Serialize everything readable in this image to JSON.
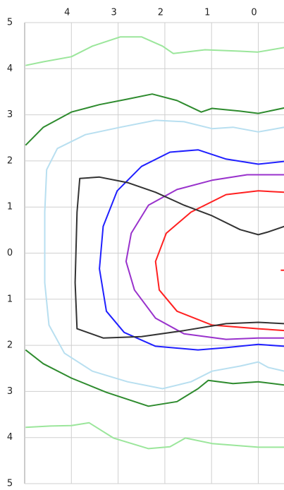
{
  "chart_data": {
    "type": "line",
    "xlim": [
      5,
      -0.55
    ],
    "xticks": [
      4,
      3,
      2,
      1,
      0
    ],
    "ylim": [
      -5,
      5
    ],
    "yticks": [
      5,
      4,
      3,
      2,
      1,
      0,
      {
        "value": -1,
        "label": "1"
      },
      {
        "value": -2,
        "label": "2"
      },
      {
        "value": -3,
        "label": "3"
      },
      {
        "value": -4,
        "label": "4"
      },
      {
        "value": -5,
        "label": "5"
      }
    ],
    "grid": true,
    "series": [
      {
        "color": "#9be69b",
        "x": [
          4.98,
          4.6,
          4.0,
          3.55,
          2.95,
          2.5,
          2.05,
          1.82,
          1.14,
          0.39,
          0.02,
          -0.56
        ],
        "values": [
          4.07,
          4.15,
          4.26,
          4.49,
          4.69,
          4.69,
          4.49,
          4.33,
          4.41,
          4.38,
          4.36,
          4.46
        ]
      },
      {
        "color": "#2e8b2e",
        "x": [
          4.98,
          4.6,
          4.0,
          3.4,
          2.8,
          2.27,
          1.74,
          1.22,
          0.99,
          0.39,
          0,
          -0.56
        ],
        "values": [
          2.34,
          2.73,
          3.06,
          3.22,
          3.34,
          3.45,
          3.31,
          3.06,
          3.14,
          3.08,
          3.03,
          3.15
        ]
      },
      {
        "color": "#b8dff0",
        "x": [
          -0.56,
          0,
          0.54,
          0.99,
          1.59,
          2.2,
          2.95,
          3.7,
          4.3,
          4.53,
          4.57,
          4.57,
          4.48,
          4.15,
          3.55,
          2.8,
          2.05,
          1.44,
          0.99,
          0.39,
          0,
          -0.21,
          -0.56
        ],
        "values": [
          2.73,
          2.63,
          2.73,
          2.7,
          2.85,
          2.88,
          2.73,
          2.57,
          2.27,
          1.81,
          0.89,
          -0.64,
          -1.56,
          -2.17,
          -2.56,
          -2.79,
          -2.94,
          -2.79,
          -2.56,
          -2.45,
          -2.36,
          -2.48,
          -2.56
        ]
      },
      {
        "color": "#2020ff",
        "x": [
          -0.56,
          0,
          0.69,
          1.29,
          1.89,
          2.5,
          3.02,
          3.32,
          3.4,
          3.25,
          2.87,
          2.2,
          1.29,
          0.69,
          0,
          -0.56
        ],
        "values": [
          1.99,
          1.93,
          2.04,
          2.24,
          2.19,
          1.88,
          1.35,
          0.58,
          -0.34,
          -1.26,
          -1.72,
          -2.02,
          -2.1,
          -2.05,
          -1.98,
          -2.02
        ]
      },
      {
        "color": "#9932cc",
        "x": [
          -0.56,
          0.24,
          0.99,
          1.74,
          2.35,
          2.72,
          2.83,
          2.65,
          2.2,
          1.59,
          0.69,
          0,
          -0.56
        ],
        "values": [
          1.7,
          1.7,
          1.58,
          1.38,
          1.04,
          0.43,
          -0.18,
          -0.8,
          -1.41,
          -1.75,
          -1.87,
          -1.84,
          -1.84
        ]
      },
      {
        "color": "#ff2020",
        "x": [
          -0.56,
          0,
          0.69,
          1.44,
          1.97,
          2.2,
          2.12,
          1.74,
          0.99,
          0,
          -0.56,
          null,
          -0.48,
          -0.56
        ],
        "values": [
          1.32,
          1.35,
          1.27,
          0.89,
          0.43,
          -0.18,
          -0.8,
          -1.26,
          -1.56,
          -1.64,
          -1.68,
          null,
          -0.37,
          -0.37
        ]
      },
      {
        "color": "#333333",
        "x": [
          -0.56,
          -0.21,
          0,
          0.39,
          0.99,
          1.59,
          2.2,
          2.8,
          3.4,
          3.82,
          3.88,
          3.92,
          3.88,
          3.32,
          2.5,
          1.59,
          0.69,
          0,
          -0.56
        ],
        "values": [
          0.58,
          0.46,
          0.4,
          0.51,
          0.81,
          1.04,
          1.32,
          1.53,
          1.65,
          1.62,
          0.89,
          -0.64,
          -1.64,
          -1.84,
          -1.81,
          -1.68,
          -1.53,
          -1.5,
          -1.53
        ]
      },
      {
        "color": "#9be69b",
        "x": [
          4.98,
          4.45,
          4.0,
          3.62,
          3.1,
          2.35,
          1.89,
          1.56,
          0.99,
          0,
          -0.56
        ],
        "values": [
          -3.78,
          -3.75,
          -3.74,
          -3.68,
          -4.01,
          -4.24,
          -4.2,
          -4.01,
          -4.13,
          -4.21,
          -4.21
        ]
      },
      {
        "color": "#2e8b2e",
        "x": [
          4.98,
          4.6,
          4.0,
          3.25,
          2.35,
          1.74,
          1.29,
          1.07,
          0.54,
          0,
          -0.56
        ],
        "values": [
          -2.1,
          -2.4,
          -2.71,
          -3.02,
          -3.32,
          -3.22,
          -2.94,
          -2.76,
          -2.83,
          -2.79,
          -2.86
        ]
      }
    ]
  }
}
